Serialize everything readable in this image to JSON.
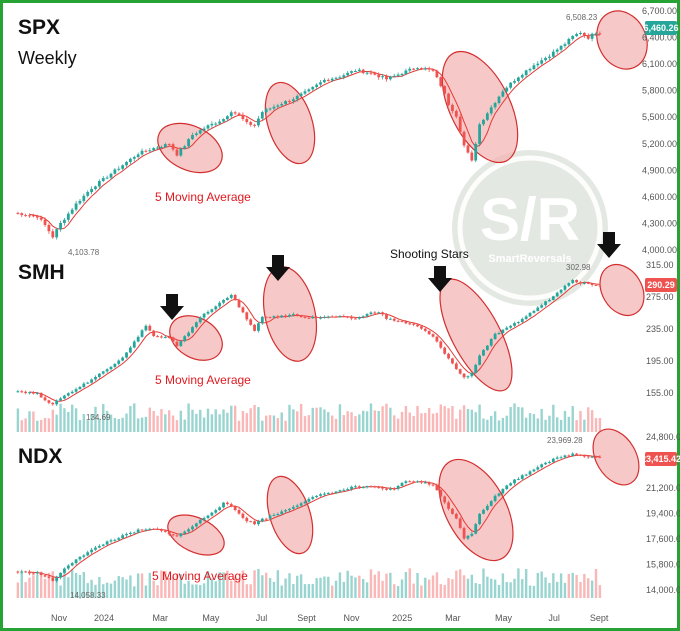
{
  "chart_data": [
    {
      "type": "candlestick",
      "title": "SPX",
      "subtitle": "Weekly",
      "y_ticks": [
        "6,700.00",
        "6,400.00",
        "6,100.00",
        "5,800.00",
        "5,500.00",
        "5,200.00",
        "4,900.00",
        "4,600.00",
        "4,300.00",
        "4,000.00"
      ],
      "ylim": [
        4000,
        6700
      ],
      "last_price": "6,460.26",
      "high_label": "6,508.23",
      "low_label": "4,103.78",
      "annotations": [
        "5 Moving Average"
      ],
      "close_path": [
        [
          0,
          4420
        ],
        [
          6,
          4380
        ],
        [
          8,
          4280
        ],
        [
          10,
          4150
        ],
        [
          12,
          4300
        ],
        [
          16,
          4520
        ],
        [
          20,
          4700
        ],
        [
          24,
          4830
        ],
        [
          28,
          4960
        ],
        [
          32,
          5090
        ],
        [
          36,
          5150
        ],
        [
          40,
          5200
        ],
        [
          42,
          5080
        ],
        [
          44,
          5180
        ],
        [
          46,
          5300
        ],
        [
          50,
          5400
        ],
        [
          54,
          5480
        ],
        [
          56,
          5570
        ],
        [
          58,
          5520
        ],
        [
          60,
          5430
        ],
        [
          62,
          5410
        ],
        [
          64,
          5560
        ],
        [
          68,
          5640
        ],
        [
          72,
          5710
        ],
        [
          76,
          5800
        ],
        [
          80,
          5920
        ],
        [
          84,
          5960
        ],
        [
          88,
          6030
        ],
        [
          92,
          6000
        ],
        [
          96,
          5930
        ],
        [
          100,
          6000
        ],
        [
          104,
          6070
        ],
        [
          108,
          6020
        ],
        [
          110,
          5860
        ],
        [
          112,
          5650
        ],
        [
          114,
          5520
        ],
        [
          116,
          5180
        ],
        [
          118,
          5000
        ],
        [
          120,
          5420
        ],
        [
          122,
          5550
        ],
        [
          126,
          5800
        ],
        [
          130,
          5960
        ],
        [
          134,
          6090
        ],
        [
          138,
          6200
        ],
        [
          142,
          6330
        ],
        [
          144,
          6410
        ],
        [
          146,
          6460
        ],
        [
          148,
          6400
        ],
        [
          150,
          6460
        ]
      ]
    },
    {
      "type": "candlestick",
      "title": "SMH",
      "y_ticks": [
        "315.00",
        "275.00",
        "235.00",
        "195.00",
        "155.00"
      ],
      "ylim": [
        135,
        330
      ],
      "last_price": "290.29",
      "high_label": "302.98",
      "low_label": "134.69",
      "annotations": [
        "Shooting Stars",
        "5 Moving Average"
      ],
      "close_path": [
        [
          0,
          158
        ],
        [
          6,
          154
        ],
        [
          10,
          140
        ],
        [
          12,
          149
        ],
        [
          16,
          160
        ],
        [
          20,
          172
        ],
        [
          24,
          185
        ],
        [
          28,
          200
        ],
        [
          32,
          225
        ],
        [
          34,
          240
        ],
        [
          36,
          226
        ],
        [
          40,
          224
        ],
        [
          42,
          213
        ],
        [
          44,
          225
        ],
        [
          48,
          250
        ],
        [
          52,
          263
        ],
        [
          54,
          272
        ],
        [
          56,
          278
        ],
        [
          58,
          262
        ],
        [
          60,
          248
        ],
        [
          62,
          232
        ],
        [
          64,
          250
        ],
        [
          68,
          250
        ],
        [
          72,
          253
        ],
        [
          76,
          249
        ],
        [
          80,
          250
        ],
        [
          84,
          250
        ],
        [
          88,
          248
        ],
        [
          92,
          255
        ],
        [
          94,
          257
        ],
        [
          96,
          248
        ],
        [
          100,
          244
        ],
        [
          104,
          238
        ],
        [
          106,
          232
        ],
        [
          108,
          225
        ],
        [
          110,
          212
        ],
        [
          112,
          198
        ],
        [
          114,
          185
        ],
        [
          116,
          174
        ],
        [
          118,
          180
        ],
        [
          120,
          202
        ],
        [
          124,
          228
        ],
        [
          128,
          238
        ],
        [
          132,
          251
        ],
        [
          136,
          265
        ],
        [
          140,
          280
        ],
        [
          142,
          290
        ],
        [
          144,
          297
        ],
        [
          146,
          292
        ],
        [
          148,
          292
        ],
        [
          150,
          290
        ]
      ]
    },
    {
      "type": "candlestick",
      "title": "NDX",
      "y_ticks": [
        "24,800.00",
        "21,200.00",
        "19,400.00",
        "17,600.00",
        "15,800.00",
        "14,000.00"
      ],
      "ylim": [
        13600,
        25500
      ],
      "last_price": "23,415.42",
      "high_label": "23,969.28",
      "low_label": "14,058.33",
      "annotations": [
        "5 Moving Average"
      ],
      "close_path": [
        [
          0,
          15300
        ],
        [
          6,
          15200
        ],
        [
          8,
          14950
        ],
        [
          10,
          14650
        ],
        [
          12,
          15200
        ],
        [
          16,
          16200
        ],
        [
          20,
          16800
        ],
        [
          24,
          17400
        ],
        [
          28,
          17800
        ],
        [
          32,
          18200
        ],
        [
          36,
          18300
        ],
        [
          40,
          18000
        ],
        [
          42,
          17800
        ],
        [
          44,
          18100
        ],
        [
          48,
          18900
        ],
        [
          52,
          19700
        ],
        [
          54,
          20100
        ],
        [
          56,
          19900
        ],
        [
          58,
          19400
        ],
        [
          60,
          18900
        ],
        [
          62,
          18700
        ],
        [
          64,
          19000
        ],
        [
          68,
          19400
        ],
        [
          72,
          19900
        ],
        [
          76,
          20400
        ],
        [
          80,
          20800
        ],
        [
          84,
          21000
        ],
        [
          88,
          21300
        ],
        [
          92,
          21250
        ],
        [
          96,
          21100
        ],
        [
          98,
          21100
        ],
        [
          100,
          21600
        ],
        [
          104,
          21700
        ],
        [
          108,
          21400
        ],
        [
          110,
          20600
        ],
        [
          112,
          19800
        ],
        [
          114,
          19000
        ],
        [
          116,
          17700
        ],
        [
          118,
          18000
        ],
        [
          120,
          19400
        ],
        [
          124,
          20600
        ],
        [
          128,
          21600
        ],
        [
          132,
          22200
        ],
        [
          136,
          22900
        ],
        [
          140,
          23300
        ],
        [
          144,
          23600
        ],
        [
          146,
          23500
        ],
        [
          148,
          23450
        ],
        [
          150,
          23415
        ]
      ]
    }
  ],
  "x_axis_labels": [
    "Nov",
    "2024",
    "Mar",
    "May",
    "Jul",
    "Sept",
    "Nov",
    "2025",
    "Mar",
    "May",
    "Jul",
    "Sept"
  ],
  "x_axis_weeks": [
    8,
    16,
    26,
    35,
    44,
    52,
    60,
    69,
    78,
    87,
    96,
    104
  ],
  "colors": {
    "up": "#26a69a",
    "down": "#ef5350",
    "ma": "#e53935",
    "ellipse_stroke": "#d32f2f",
    "ellipse_fill": "#f4b0b0",
    "frame": "#27a336",
    "badge_up": "#26a69a",
    "badge_down": "#ef5350",
    "volume_up": "#80cbc4",
    "volume_down": "#f8a5a5"
  },
  "watermark": {
    "text": "S/R",
    "small": "SmartReversals"
  }
}
